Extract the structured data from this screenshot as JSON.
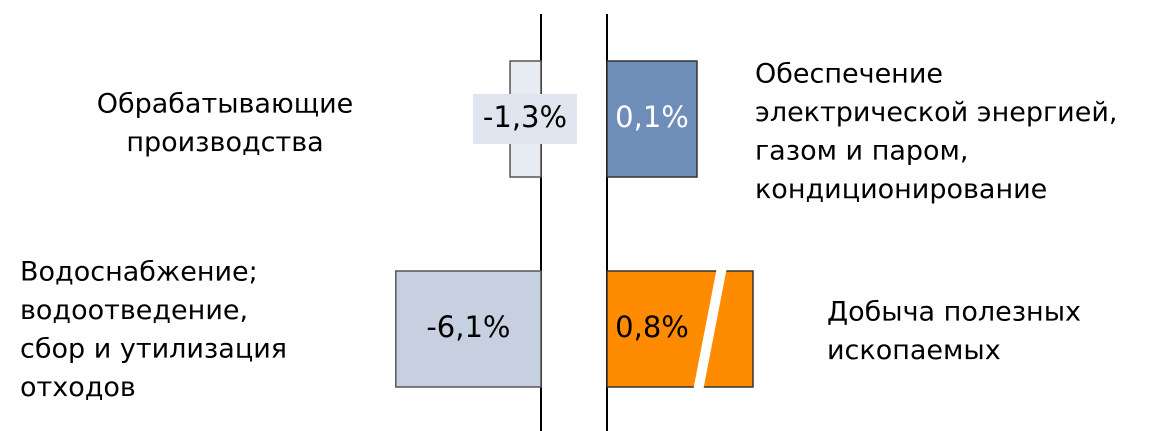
{
  "chart_data": {
    "type": "bar",
    "categories": [
      [
        "Обрабатывающие",
        "производства"
      ],
      [
        "Обеспечение",
        "электрической энергией,",
        "газом и паром,",
        "кондиционирование"
      ],
      [
        "Водоснабжение;",
        "водоотведение,",
        "сбор и утилизация",
        "отходов"
      ],
      [
        "Добыча полезных",
        "ископаемых"
      ]
    ],
    "values": [
      -1.3,
      0.1,
      -6.1,
      0.8
    ],
    "value_labels": [
      "-1,3%",
      "0,1%",
      "-6,1%",
      "0,8%"
    ],
    "colors": [
      "#e8ecf3",
      "#6f8db9",
      "#c7d0e1",
      "#ff8c00"
    ]
  }
}
